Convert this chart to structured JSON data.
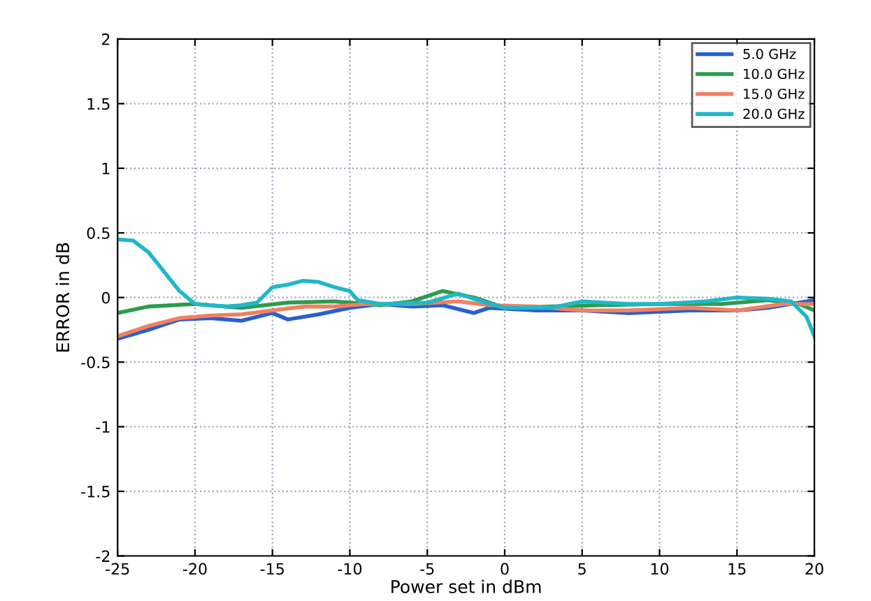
{
  "chart_data": {
    "type": "line",
    "xlabel": "Power set in dBm",
    "ylabel": "ERROR in dB",
    "xlim": [
      -25,
      20
    ],
    "xticks": [
      -25,
      -20,
      -15,
      -10,
      -5,
      0,
      5,
      10,
      15,
      20
    ],
    "ylim": [
      -2,
      2
    ],
    "yticks": [
      -2,
      -1.5,
      -1,
      -0.5,
      0,
      0.5,
      1,
      1.5,
      2
    ],
    "grid": true,
    "legend": "top right",
    "line_style": "solid",
    "marker": "none",
    "series": [
      {
        "name": "5.0 GHz",
        "color": "#2a5fd0",
        "x": [
          -25,
          -23,
          -21,
          -19,
          -17,
          -15,
          -14,
          -12,
          -10,
          -8,
          -6,
          -4,
          -2,
          -1,
          2,
          5,
          8,
          12,
          15,
          17,
          20
        ],
        "values": [
          -0.32,
          -0.25,
          -0.17,
          -0.16,
          -0.18,
          -0.12,
          -0.17,
          -0.13,
          -0.08,
          -0.05,
          -0.07,
          -0.06,
          -0.12,
          -0.08,
          -0.1,
          -0.1,
          -0.12,
          -0.1,
          -0.1,
          -0.08,
          -0.02
        ]
      },
      {
        "name": "10.0 GHz",
        "color": "#2e9a50",
        "x": [
          -25,
          -23,
          -20,
          -17,
          -14,
          -11,
          -8,
          -6,
          -4,
          -2,
          0,
          3,
          6,
          10,
          14,
          17,
          19,
          20
        ],
        "values": [
          -0.12,
          -0.07,
          -0.05,
          -0.08,
          -0.04,
          -0.03,
          -0.06,
          -0.03,
          0.05,
          0.0,
          -0.08,
          -0.07,
          -0.06,
          -0.05,
          -0.05,
          -0.02,
          -0.05,
          -0.1
        ]
      },
      {
        "name": "15.0 GHz",
        "color": "#f08060",
        "x": [
          -25,
          -23,
          -21,
          -19,
          -17,
          -15,
          -13,
          -11,
          -9,
          -6,
          -3,
          -1,
          2,
          5,
          8,
          12,
          15,
          18,
          20
        ],
        "values": [
          -0.3,
          -0.22,
          -0.16,
          -0.14,
          -0.13,
          -0.1,
          -0.07,
          -0.07,
          -0.05,
          -0.05,
          -0.03,
          -0.06,
          -0.07,
          -0.1,
          -0.1,
          -0.08,
          -0.1,
          -0.05,
          -0.05
        ]
      },
      {
        "name": "20.0 GHz",
        "color": "#20b8c8",
        "x": [
          -25,
          -24,
          -23,
          -22,
          -21,
          -20,
          -19,
          -18,
          -17,
          -16,
          -15,
          -14,
          -13,
          -12,
          -11,
          -10,
          -9.5,
          -8,
          -5,
          -3,
          -1,
          0,
          3,
          5,
          8,
          10,
          13,
          15,
          17,
          18.5,
          19.5,
          20
        ],
        "values": [
          0.45,
          0.44,
          0.35,
          0.2,
          0.05,
          -0.05,
          -0.06,
          -0.07,
          -0.06,
          -0.04,
          0.08,
          0.1,
          0.13,
          0.12,
          0.08,
          0.05,
          -0.02,
          -0.05,
          -0.04,
          0.03,
          -0.05,
          -0.08,
          -0.08,
          -0.03,
          -0.05,
          -0.05,
          -0.03,
          0.0,
          -0.01,
          -0.03,
          -0.15,
          -0.3
        ]
      }
    ]
  }
}
